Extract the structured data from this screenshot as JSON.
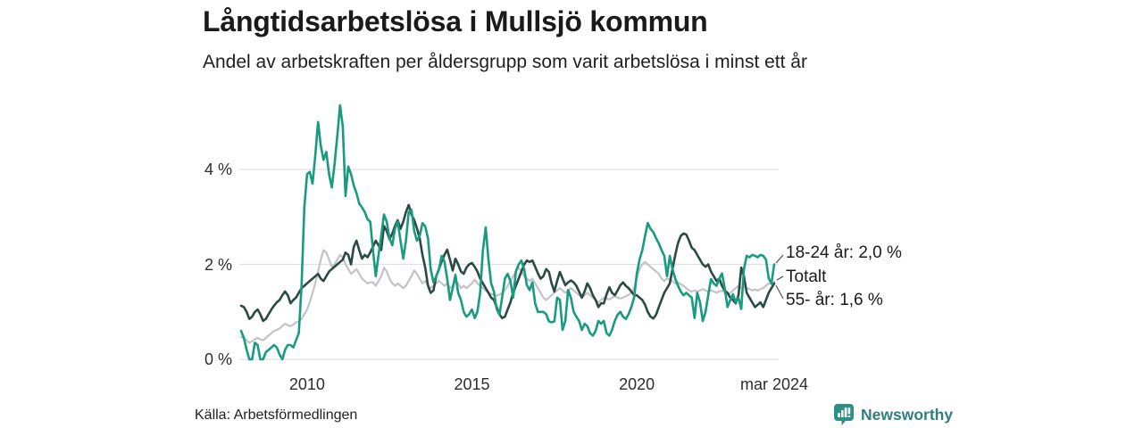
{
  "title": "Långtidsarbetslösa i Mullsjö kommun",
  "subtitle": "Andel av arbetskraften per åldersgrupp som varit arbetslösa i minst ett år",
  "source": "Källa: Arbetsförmedlingen",
  "logo": {
    "text": "Newsworthy",
    "icon": "bar-chart-speech-bubble-icon",
    "text_color": "#317e80",
    "icon_color": "#2e8f85"
  },
  "annotations": [
    {
      "label": "18-24 år: 2,0 %"
    },
    {
      "label": "Totalt"
    },
    {
      "label": "55- år: 1,6 %"
    }
  ],
  "chart_data": {
    "type": "line",
    "unit": "%",
    "frequency": "monthly",
    "x_start": 2008.0,
    "x_end": 2024.1667,
    "x_tick_labels": [
      {
        "label": "2010",
        "x": 2010
      },
      {
        "label": "2015",
        "x": 2015
      },
      {
        "label": "2020",
        "x": 2020
      },
      {
        "label": "mar 2024",
        "x": 2024.1667
      }
    ],
    "y_ticks": [
      {
        "label": "0 %",
        "value": 0
      },
      {
        "label": "2 %",
        "value": 2
      },
      {
        "label": "4 %",
        "value": 4
      }
    ],
    "ylim": [
      0,
      5.5
    ],
    "grid": "horizontal",
    "legend_position": "right-end-labels",
    "gridline_color": "#e0e0e0",
    "series": [
      {
        "name": "Totalt",
        "color": "#c3c2c9",
        "width": 2.2,
        "end_value": 1.63,
        "values": [
          0.47,
          0.45,
          0.4,
          0.35,
          0.38,
          0.42,
          0.45,
          0.42,
          0.4,
          0.45,
          0.5,
          0.55,
          0.6,
          0.62,
          0.65,
          0.7,
          0.75,
          0.72,
          0.7,
          0.73,
          0.78,
          0.8,
          0.85,
          0.95,
          1.05,
          1.2,
          1.4,
          1.6,
          1.85,
          2.1,
          2.3,
          2.25,
          2.1,
          1.95,
          2.0,
          2.1,
          2.2,
          2.15,
          2.0,
          1.9,
          1.8,
          1.85,
          1.9,
          1.8,
          1.7,
          1.65,
          1.6,
          1.62,
          1.62,
          1.55,
          1.65,
          1.75,
          1.93,
          1.85,
          1.7,
          1.6,
          1.55,
          1.6,
          1.55,
          1.5,
          1.55,
          1.65,
          1.75,
          1.87,
          1.8,
          1.7,
          1.6,
          1.65,
          1.55,
          1.5,
          1.55,
          1.6,
          1.65,
          1.6,
          1.55,
          1.6,
          1.5,
          1.55,
          1.65,
          1.6,
          1.5,
          1.55,
          1.5,
          1.55,
          1.6,
          1.68,
          1.6,
          1.55,
          1.5,
          1.45,
          1.4,
          1.38,
          1.36,
          1.34,
          1.36,
          1.4,
          1.45,
          1.55,
          1.65,
          1.75,
          1.85,
          1.93,
          1.85,
          1.75,
          1.7,
          1.65,
          1.7,
          1.6,
          1.5,
          1.4,
          1.3,
          1.25,
          1.3,
          1.35,
          1.4,
          1.45,
          1.5,
          1.45,
          1.4,
          1.45,
          1.5,
          1.45,
          1.4,
          1.35,
          1.3,
          1.35,
          1.4,
          1.35,
          1.3,
          1.25,
          1.2,
          1.25,
          1.3,
          1.28,
          1.26,
          1.3,
          1.33,
          1.3,
          1.28,
          1.3,
          1.33,
          1.36,
          1.4,
          1.5,
          1.7,
          1.9,
          2.0,
          2.05,
          2.0,
          1.95,
          1.9,
          1.85,
          1.8,
          1.7,
          1.65,
          1.7,
          1.68,
          1.65,
          1.6,
          1.62,
          1.58,
          1.55,
          1.5,
          1.45,
          1.43,
          1.45,
          1.43,
          1.45,
          1.48,
          1.45,
          1.43,
          1.45,
          1.43,
          1.4,
          1.43,
          1.45,
          1.4,
          1.37,
          1.4,
          1.45,
          1.5,
          1.55,
          1.5,
          1.52,
          1.5,
          1.48,
          1.45,
          1.47,
          1.45,
          1.48,
          1.5,
          1.55,
          1.6,
          1.58,
          1.63
        ]
      },
      {
        "name": "55- år",
        "color": "#2c4a44",
        "width": 2.6,
        "end_value": 1.6,
        "values": [
          1.13,
          1.1,
          1.0,
          0.85,
          0.9,
          1.0,
          1.05,
          0.95,
          0.81,
          0.85,
          0.95,
          1.05,
          1.13,
          1.2,
          1.25,
          1.35,
          1.43,
          1.35,
          1.18,
          1.25,
          1.3,
          1.4,
          1.5,
          1.55,
          1.6,
          1.65,
          1.7,
          1.75,
          1.8,
          1.7,
          1.65,
          1.75,
          1.85,
          1.9,
          1.95,
          2.0,
          2.05,
          2.1,
          2.25,
          2.2,
          2.0,
          2.37,
          2.5,
          2.3,
          2.12,
          2.2,
          2.15,
          2.25,
          2.37,
          2.5,
          2.4,
          2.3,
          2.81,
          2.7,
          2.53,
          2.65,
          2.81,
          2.93,
          2.75,
          2.9,
          3.1,
          3.25,
          3.05,
          2.93,
          2.76,
          2.55,
          2.2,
          1.93,
          1.55,
          1.4,
          1.45,
          1.75,
          1.9,
          2.06,
          2.2,
          2.31,
          2.1,
          1.87,
          2.12,
          2.0,
          1.85,
          1.8,
          1.93,
          2.0,
          2.03,
          1.95,
          1.85,
          1.7,
          1.6,
          1.5,
          1.4,
          1.3,
          1.25,
          1.1,
          0.95,
          0.87,
          0.9,
          1.05,
          1.2,
          1.4,
          1.55,
          1.7,
          1.85,
          2.0,
          2.08,
          2.05,
          2.08,
          1.95,
          1.81,
          1.7,
          1.75,
          1.9,
          1.84,
          1.6,
          1.43,
          1.65,
          1.84,
          1.7,
          1.56,
          1.62,
          1.66,
          1.62,
          1.55,
          1.43,
          1.3,
          1.43,
          1.6,
          1.5,
          1.35,
          1.25,
          1.1,
          1.18,
          1.18,
          1.37,
          1.52,
          1.4,
          1.35,
          1.45,
          1.56,
          1.62,
          1.55,
          1.5,
          1.43,
          1.35,
          1.35,
          1.3,
          1.25,
          1.15,
          1.0,
          0.9,
          0.86,
          0.94,
          1.1,
          1.25,
          1.4,
          1.5,
          1.6,
          1.9,
          2.2,
          2.45,
          2.6,
          2.65,
          2.63,
          2.5,
          2.35,
          2.3,
          2.2,
          2.1,
          2.0,
          1.95,
          2.0,
          1.85,
          1.75,
          1.65,
          1.7,
          1.55,
          1.45,
          1.4,
          1.3,
          1.25,
          1.18,
          1.35,
          1.93,
          1.75,
          1.4,
          1.3,
          1.2,
          1.1,
          1.15,
          1.2,
          1.1,
          1.25,
          1.4,
          1.5,
          1.6
        ]
      },
      {
        "name": "18-24 år",
        "color": "#189b80",
        "width": 2.6,
        "end_value": 2.0,
        "values": [
          0.6,
          0.45,
          0.2,
          0,
          0,
          0.35,
          0.3,
          0,
          0,
          0.15,
          0.2,
          0.25,
          0.3,
          0.25,
          0.1,
          0,
          0.2,
          0.3,
          0.3,
          0.25,
          0.4,
          0.55,
          1.55,
          3.2,
          3.9,
          3.95,
          3.7,
          4.3,
          5.0,
          4.5,
          4.2,
          4.37,
          3.9,
          3.62,
          4.1,
          4.7,
          5.35,
          4.9,
          3.44,
          4.06,
          3.9,
          3.66,
          3.5,
          3.28,
          3.2,
          3.1,
          2.95,
          2.9,
          2.3,
          1.75,
          2.2,
          2.6,
          3.05,
          2.9,
          2.55,
          2.4,
          2.75,
          2.9,
          2.5,
          2.12,
          2.5,
          3.1,
          3.15,
          2.7,
          2.5,
          2.6,
          2.87,
          2.8,
          2.55,
          1.9,
          1.62,
          1.75,
          1.9,
          2.18,
          2.06,
          1.7,
          1.25,
          1.5,
          1.78,
          1.4,
          1.25,
          1.0,
          0.9,
          0.95,
          1.05,
          0.87,
          1.0,
          1.4,
          2.3,
          2.78,
          2.1,
          1.6,
          1.43,
          1.06,
          0.94,
          1.3,
          1.7,
          1.8,
          1.65,
          1.3,
          1.85,
          2.0,
          2.08,
          1.9,
          1.56,
          1.46,
          1.62,
          1.18,
          1.0,
          1.0,
          1.0,
          0.95,
          0.8,
          0.78,
          0.8,
          1.3,
          1.25,
          0.62,
          0.81,
          1.46,
          1.3,
          1.0,
          0.9,
          0.81,
          0.62,
          0.75,
          0.7,
          0.55,
          0.5,
          0.6,
          0.81,
          0.75,
          0.81,
          0.55,
          0.5,
          0.62,
          0.81,
          0.94,
          1.0,
          0.9,
          0.85,
          0.95,
          1.1,
          1.3,
          1.8,
          2.1,
          2.3,
          2.6,
          2.87,
          2.75,
          2.68,
          2.55,
          2.44,
          2.3,
          2.18,
          1.75,
          2.18,
          1.9,
          1.7,
          1.55,
          1.43,
          1.35,
          1.4,
          1.35,
          1.3,
          0.87,
          1.4,
          1.2,
          0.81,
          1.0,
          1.35,
          1.69,
          1.6,
          1.55,
          1.7,
          1.81,
          1.5,
          1.1,
          1.25,
          1.37,
          1.2,
          1.3,
          1.06,
          1.9,
          2.18,
          2.15,
          2.2,
          2.18,
          2.15,
          2.2,
          2.18,
          2.1,
          1.71,
          1.6,
          2.0
        ]
      }
    ]
  }
}
